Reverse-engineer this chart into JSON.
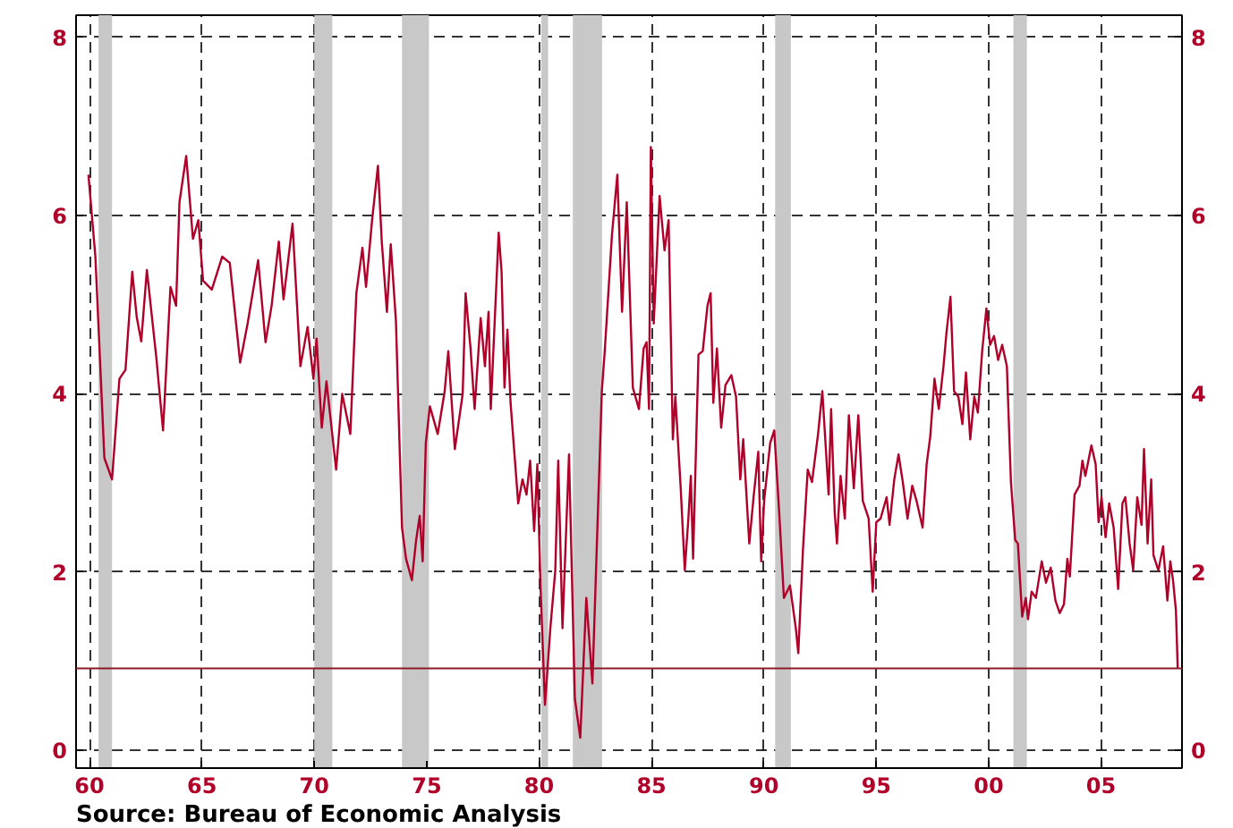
{
  "chart_data": {
    "type": "line",
    "annotations": [
      "Source:  Bureau of Economic Analysis"
    ],
    "x": [
      1959.95,
      1960.26,
      1960.66,
      1961.0,
      1961.33,
      1961.6,
      1961.9,
      1962.1,
      1962.3,
      1962.55,
      1962.97,
      1963.27,
      1963.6,
      1963.85,
      1964.0,
      1964.3,
      1964.6,
      1964.84,
      1965.05,
      1965.44,
      1965.9,
      1966.24,
      1966.7,
      1967.04,
      1967.5,
      1967.83,
      1968.1,
      1968.42,
      1968.63,
      1969.03,
      1969.38,
      1969.7,
      1969.96,
      1970.1,
      1970.33,
      1970.54,
      1970.97,
      1971.24,
      1971.6,
      1971.87,
      1972.14,
      1972.3,
      1972.57,
      1972.83,
      1973.0,
      1973.23,
      1973.4,
      1973.63,
      1973.9,
      1974.08,
      1974.34,
      1974.53,
      1974.69,
      1974.82,
      1974.96,
      1975.14,
      1975.49,
      1975.8,
      1975.96,
      1976.25,
      1976.6,
      1976.73,
      1976.95,
      1977.13,
      1977.4,
      1977.59,
      1977.75,
      1977.85,
      1978.2,
      1978.33,
      1978.46,
      1978.59,
      1978.73,
      1979.07,
      1979.26,
      1979.44,
      1979.6,
      1979.78,
      1979.92,
      1980.06,
      1980.26,
      1980.5,
      1980.72,
      1980.85,
      1981.04,
      1981.33,
      1981.59,
      1981.83,
      1982.1,
      1982.37,
      1982.79,
      1982.92,
      1983.24,
      1983.48,
      1983.69,
      1983.9,
      1984.17,
      1984.44,
      1984.65,
      1984.78,
      1984.89,
      1984.97,
      1985.1,
      1985.36,
      1985.58,
      1985.76,
      1985.95,
      1986.06,
      1986.3,
      1986.48,
      1986.64,
      1986.75,
      1986.85,
      1987.09,
      1987.28,
      1987.49,
      1987.63,
      1987.75,
      1987.91,
      1988.1,
      1988.29,
      1988.55,
      1988.76,
      1988.95,
      1989.08,
      1989.35,
      1989.54,
      1989.75,
      1989.88,
      1990.01,
      1990.28,
      1990.46,
      1990.68,
      1990.89,
      1991.16,
      1991.42,
      1991.53,
      1991.74,
      1991.95,
      1992.14,
      1992.41,
      1992.6,
      1992.88,
      1992.99,
      1993.15,
      1993.25,
      1993.41,
      1993.6,
      1993.78,
      1994.0,
      1994.2,
      1994.4,
      1994.66,
      1994.84,
      1995.0,
      1995.19,
      1995.46,
      1995.59,
      1995.8,
      1995.99,
      1996.18,
      1996.39,
      1996.6,
      1996.79,
      1997.06,
      1997.24,
      1997.4,
      1997.59,
      1997.78,
      1997.99,
      1998.12,
      1998.3,
      1998.46,
      1998.65,
      1998.83,
      1998.99,
      1999.18,
      1999.36,
      1999.52,
      1999.71,
      1999.9,
      2000.06,
      2000.24,
      2000.42,
      2000.6,
      2000.81,
      2000.99,
      2001.18,
      2001.3,
      2001.49,
      2001.65,
      2001.75,
      2001.91,
      2002.1,
      2002.36,
      2002.55,
      2002.76,
      2002.97,
      2003.16,
      2003.35,
      2003.5,
      2003.61,
      2003.82,
      2004.04,
      2004.17,
      2004.3,
      2004.57,
      2004.76,
      2004.89,
      2005.02,
      2005.2,
      2005.36,
      2005.56,
      2005.76,
      2005.95,
      2006.08,
      2006.27,
      2006.43,
      2006.61,
      2006.8,
      2006.91,
      2007.07,
      2007.23,
      2007.33,
      2007.55,
      2007.76,
      2007.95,
      2008.08,
      2008.2,
      2008.33,
      2008.41
    ],
    "series": [
      {
        "color": "#b0002a",
        "values": [
          6.46,
          5.54,
          3.28,
          3.04,
          4.17,
          4.27,
          5.37,
          4.86,
          4.59,
          5.39,
          4.41,
          3.59,
          5.2,
          4.99,
          6.15,
          6.67,
          5.74,
          5.95,
          5.27,
          5.17,
          5.54,
          5.47,
          4.35,
          4.8,
          5.5,
          4.58,
          4.99,
          5.71,
          5.06,
          5.91,
          4.31,
          4.75,
          4.17,
          4.62,
          3.62,
          4.14,
          3.15,
          4.0,
          3.55,
          5.13,
          5.64,
          5.2,
          5.95,
          6.56,
          5.71,
          4.92,
          5.68,
          4.82,
          2.5,
          2.15,
          1.91,
          2.36,
          2.63,
          2.12,
          3.45,
          3.86,
          3.55,
          4.03,
          4.48,
          3.38,
          4.0,
          5.13,
          4.51,
          3.83,
          4.85,
          4.31,
          4.92,
          3.83,
          5.81,
          5.37,
          4.07,
          4.72,
          3.9,
          2.77,
          3.04,
          2.87,
          3.25,
          2.46,
          3.21,
          1.85,
          0.51,
          1.37,
          2.02,
          3.25,
          1.37,
          3.32,
          0.58,
          0.14,
          1.71,
          0.75,
          4.03,
          4.48,
          5.78,
          6.46,
          4.92,
          6.15,
          4.07,
          3.83,
          4.51,
          4.58,
          3.83,
          6.77,
          4.79,
          6.22,
          5.61,
          5.95,
          3.49,
          3.97,
          2.94,
          2.02,
          2.6,
          3.08,
          2.15,
          4.44,
          4.48,
          4.99,
          5.13,
          3.9,
          4.51,
          3.62,
          4.1,
          4.21,
          3.97,
          3.04,
          3.49,
          2.32,
          2.84,
          3.35,
          2.12,
          2.8,
          3.45,
          3.59,
          2.67,
          1.71,
          1.85,
          1.37,
          1.09,
          2.26,
          3.15,
          3.01,
          3.55,
          4.03,
          2.87,
          3.83,
          2.67,
          2.32,
          3.08,
          2.6,
          3.76,
          2.94,
          3.76,
          2.8,
          2.6,
          1.78,
          2.56,
          2.6,
          2.84,
          2.53,
          3.04,
          3.32,
          3.01,
          2.6,
          2.97,
          2.8,
          2.5,
          3.21,
          3.52,
          4.17,
          3.83,
          4.31,
          4.68,
          5.09,
          4.03,
          3.97,
          3.66,
          4.24,
          3.49,
          3.97,
          3.79,
          4.48,
          4.96,
          4.55,
          4.65,
          4.38,
          4.55,
          4.31,
          3.01,
          2.36,
          2.32,
          1.5,
          1.71,
          1.47,
          1.78,
          1.71,
          2.12,
          1.88,
          2.05,
          1.68,
          1.54,
          1.64,
          2.15,
          1.95,
          2.87,
          2.97,
          3.25,
          3.08,
          3.42,
          3.21,
          2.56,
          2.84,
          2.39,
          2.77,
          2.5,
          1.81,
          2.77,
          2.84,
          2.32,
          2.02,
          2.84,
          2.53,
          3.38,
          2.32,
          3.04,
          2.19,
          2.02,
          2.29,
          1.68,
          2.12,
          1.91,
          1.57,
          0.92
        ]
      }
    ],
    "xlim": [
      1959.4,
      2008.6
    ],
    "xticks": [
      {
        "value": 1960,
        "label": "60"
      },
      {
        "value": 1965,
        "label": "65"
      },
      {
        "value": 1970,
        "label": "70"
      },
      {
        "value": 1975,
        "label": "75"
      },
      {
        "value": 1980,
        "label": "80"
      },
      {
        "value": 1985,
        "label": "85"
      },
      {
        "value": 1990,
        "label": "90"
      },
      {
        "value": 1995,
        "label": "95"
      },
      {
        "value": 2000,
        "label": "00"
      },
      {
        "value": 2005,
        "label": "05"
      }
    ],
    "ylim": [
      -0.2,
      8.25
    ],
    "yticks": [
      0,
      2,
      4,
      6,
      8
    ],
    "y2lim": [
      -0.2,
      8.25
    ],
    "y2ticks": [
      0,
      2,
      4,
      6,
      8
    ],
    "grid": true,
    "ref_lines": [
      {
        "axis": "y",
        "value": 0.92,
        "color": "#8b1a2b",
        "line_style": "solid"
      }
    ],
    "bands": [
      {
        "axis": "x",
        "from": 1960.4,
        "to": 1961.0,
        "color": "#c8c8c8"
      },
      {
        "axis": "x",
        "from": 1970.0,
        "to": 1970.8,
        "color": "#c8c8c8"
      },
      {
        "axis": "x",
        "from": 1973.9,
        "to": 1975.1,
        "color": "#c8c8c8"
      },
      {
        "axis": "x",
        "from": 1980.1,
        "to": 1980.4,
        "color": "#c8c8c8"
      },
      {
        "axis": "x",
        "from": 1981.5,
        "to": 1982.8,
        "color": "#c8c8c8"
      },
      {
        "axis": "x",
        "from": 1990.5,
        "to": 1991.2,
        "color": "#c8c8c8"
      },
      {
        "axis": "x",
        "from": 2001.1,
        "to": 2001.7,
        "color": "#c8c8c8"
      }
    ]
  }
}
